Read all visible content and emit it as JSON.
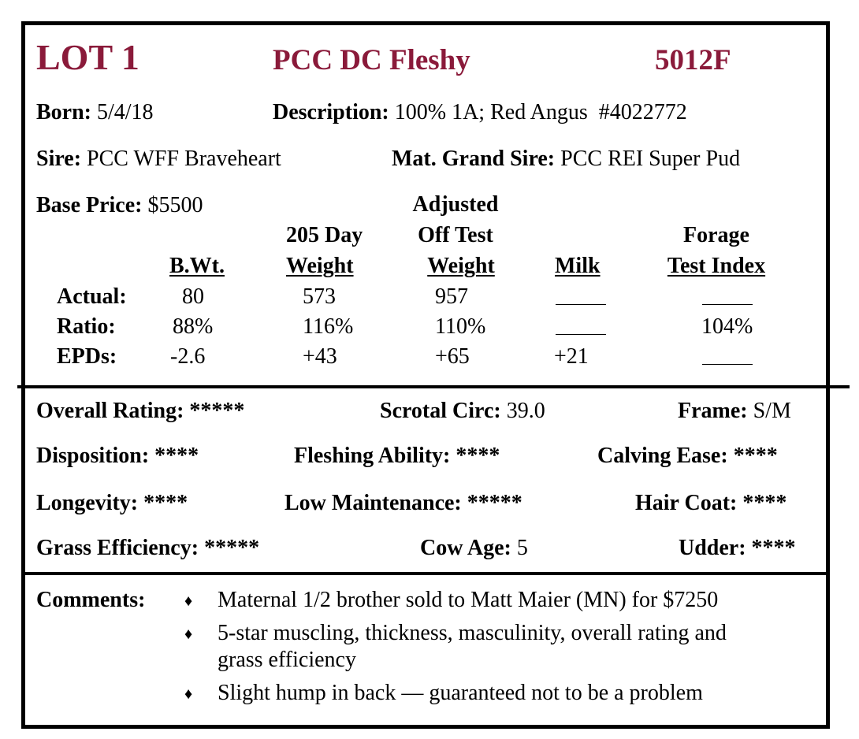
{
  "header": {
    "lot": "LOT 1",
    "name": "PCC DC Fleshy",
    "tag": "5012F"
  },
  "info": {
    "born_label": "Born:",
    "born_value": "5/4/18",
    "description_label": "Description:",
    "description_value": "100% 1A; Red Angus  #4022772",
    "sire_label": "Sire:",
    "sire_value": "PCC WFF Braveheart",
    "mgs_label": "Mat. Grand Sire:",
    "mgs_value": "PCC REI Super Pud",
    "base_price_label": "Base Price:",
    "base_price_value": "$5500"
  },
  "table": {
    "headers": {
      "bwt": "B.Wt.",
      "wt205_line1": "205 Day",
      "wt205_line2": "Weight",
      "adj_line1": "Adjusted",
      "adj_line2": "Off Test",
      "adj_line3": "Weight",
      "milk": "Milk",
      "forage_line1": "Forage",
      "forage_line2": "Test Index"
    },
    "rows": [
      {
        "label": "Actual:",
        "bwt": "80",
        "wt205": "573",
        "adj": "957",
        "milk": "",
        "forage": ""
      },
      {
        "label": "Ratio:",
        "bwt": "88%",
        "wt205": "116%",
        "adj": "110%",
        "milk": "",
        "forage": "104%"
      },
      {
        "label": "EPDs:",
        "bwt": "-2.6",
        "wt205": "+43",
        "adj": "+65",
        "milk": "+21",
        "forage": ""
      }
    ]
  },
  "ratings": {
    "overall_label": "Overall Rating:",
    "overall_value": "*****",
    "scrotal_label": "Scrotal Circ:",
    "scrotal_value": "39.0",
    "frame_label": "Frame:",
    "frame_value": "S/M",
    "disposition_label": "Disposition:",
    "disposition_value": "****",
    "fleshing_label": "Fleshing Ability:",
    "fleshing_value": "****",
    "calving_label": "Calving Ease:",
    "calving_value": "****",
    "longevity_label": "Longevity:",
    "longevity_value": "****",
    "lowmaint_label": "Low Maintenance:",
    "lowmaint_value": "*****",
    "haircoat_label": "Hair Coat:",
    "haircoat_value": "****",
    "grass_label": "Grass Efficiency:",
    "grass_value": "*****",
    "cowage_label": "Cow Age:",
    "cowage_value": "5",
    "udder_label": "Udder:",
    "udder_value": "****"
  },
  "comments": {
    "label": "Comments:",
    "bullet": "♦",
    "items": [
      "Maternal 1/2 brother sold to Matt Maier (MN) for $7250",
      "5-star muscling, thickness, masculinity, overall rating and",
      "grass efficiency",
      "Slight hump in back — guaranteed not to be a problem"
    ]
  }
}
